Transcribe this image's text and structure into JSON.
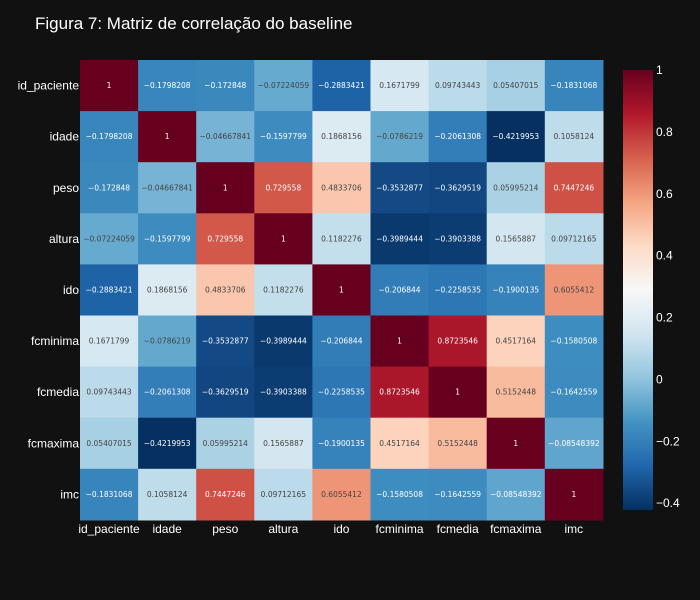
{
  "title": "Figura 7: Matriz de correlação do baseline",
  "chart_data": {
    "type": "heatmap",
    "title": "Figura 7: Matriz de correlação do baseline",
    "colorscale": "RdBu",
    "zmin": -0.4219953,
    "zmax": 1,
    "labels": [
      "id_paciente",
      "idade",
      "peso",
      "altura",
      "ido",
      "fcminima",
      "fcmedia",
      "fcmaxima",
      "imc"
    ],
    "values": [
      [
        1,
        -0.1798208,
        -0.172848,
        -0.07224059,
        -0.2883421,
        0.1671799,
        0.09743443,
        0.05407015,
        -0.1831068
      ],
      [
        -0.1798208,
        1,
        -0.04667841,
        -0.1597799,
        0.1868156,
        -0.0786219,
        -0.2061308,
        -0.4219953,
        0.1058124
      ],
      [
        -0.172848,
        -0.04667841,
        1,
        0.729558,
        0.4833706,
        -0.3532877,
        -0.3629519,
        0.05995214,
        0.7447246
      ],
      [
        -0.07224059,
        -0.1597799,
        0.729558,
        1,
        0.1182276,
        -0.3989444,
        -0.3903388,
        0.1565887,
        0.09712165
      ],
      [
        -0.2883421,
        0.1868156,
        0.4833706,
        0.1182276,
        1,
        -0.206844,
        -0.2258535,
        -0.1900135,
        0.6055412
      ],
      [
        0.1671799,
        -0.0786219,
        -0.3532877,
        -0.3989444,
        -0.206844,
        1,
        0.8723546,
        0.4517164,
        -0.1580508
      ],
      [
        0.09743443,
        -0.2061308,
        -0.3629519,
        -0.3903388,
        -0.2258535,
        0.8723546,
        1,
        0.5152448,
        -0.1642559
      ],
      [
        0.05407015,
        -0.4219953,
        0.05995214,
        0.1565887,
        -0.1900135,
        0.4517164,
        0.5152448,
        1,
        -0.08548392
      ],
      [
        -0.1831068,
        0.1058124,
        0.7447246,
        0.09712165,
        0.6055412,
        -0.1580508,
        -0.1642559,
        -0.08548392,
        1
      ]
    ],
    "cell_text": [
      [
        "1",
        "−0.1798208",
        "−0.172848",
        "−0.07224059",
        "−0.2883421",
        "0.1671799",
        "0.09743443",
        "0.05407015",
        "−0.1831068"
      ],
      [
        "−0.1798208",
        "1",
        "−0.04667841",
        "−0.1597799",
        "0.1868156",
        "−0.0786219",
        "−0.2061308",
        "−0.4219953",
        "0.1058124"
      ],
      [
        "−0.172848",
        "−0.04667841",
        "1",
        "0.729558",
        "0.4833706",
        "−0.3532877",
        "−0.3629519",
        "0.05995214",
        "0.7447246"
      ],
      [
        "−0.07224059",
        "−0.1597799",
        "0.729558",
        "1",
        "0.1182276",
        "−0.3989444",
        "−0.3903388",
        "0.1565887",
        "0.09712165"
      ],
      [
        "−0.2883421",
        "0.1868156",
        "0.4833706",
        "0.1182276",
        "1",
        "−0.206844",
        "−0.2258535",
        "−0.1900135",
        "0.6055412"
      ],
      [
        "0.1671799",
        "−0.0786219",
        "−0.3532877",
        "−0.3989444",
        "−0.206844",
        "1",
        "0.8723546",
        "0.4517164",
        "−0.1580508"
      ],
      [
        "0.09743443",
        "−0.2061308",
        "−0.3629519",
        "−0.3903388",
        "−0.2258535",
        "0.8723546",
        "1",
        "0.5152448",
        "−0.1642559"
      ],
      [
        "0.05407015",
        "−0.4219953",
        "0.05995214",
        "0.1565887",
        "−0.1900135",
        "0.4517164",
        "0.5152448",
        "1",
        "−0.08548392"
      ],
      [
        "−0.1831068",
        "0.1058124",
        "0.7447246",
        "0.09712165",
        "0.6055412",
        "−0.1580508",
        "−0.1642559",
        "−0.08548392",
        "1"
      ]
    ],
    "colorbar_ticks": [
      {
        "value": 1,
        "label": "1"
      },
      {
        "value": 0.8,
        "label": "0.8"
      },
      {
        "value": 0.6,
        "label": "0.6"
      },
      {
        "value": 0.4,
        "label": "0.4"
      },
      {
        "value": 0.2,
        "label": "0.2"
      },
      {
        "value": 0,
        "label": "0"
      },
      {
        "value": -0.2,
        "label": "−0.2"
      },
      {
        "value": -0.4,
        "label": "−0.4"
      }
    ]
  }
}
